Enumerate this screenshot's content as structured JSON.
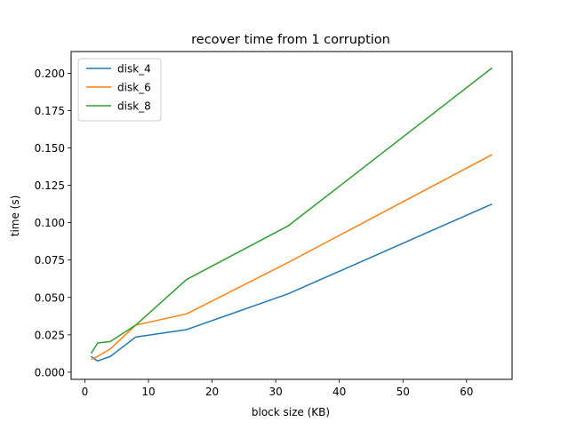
{
  "chart_data": {
    "type": "line",
    "title": "recover time from 1 corruption",
    "xlabel": "block size (KB)",
    "ylabel": "time (s)",
    "xlim": [
      -2.15,
      67.15
    ],
    "ylim": [
      -0.0048,
      0.2145
    ],
    "xticks": [
      0,
      10,
      20,
      30,
      40,
      50,
      60
    ],
    "xtick_labels": [
      "0",
      "10",
      "20",
      "30",
      "40",
      "50",
      "60"
    ],
    "yticks": [
      0.0,
      0.025,
      0.05,
      0.075,
      0.1,
      0.125,
      0.15,
      0.175,
      0.2
    ],
    "ytick_labels": [
      "0.000",
      "0.025",
      "0.050",
      "0.075",
      "0.100",
      "0.125",
      "0.150",
      "0.175",
      "0.200"
    ],
    "grid": false,
    "legend_position": "upper-left",
    "series": [
      {
        "name": "disk_4",
        "color": "#1f77b4",
        "x": [
          1,
          2,
          4,
          8,
          16,
          32,
          64
        ],
        "y": [
          0.0105,
          0.0075,
          0.0105,
          0.0235,
          0.0285,
          0.0525,
          0.1125
        ]
      },
      {
        "name": "disk_6",
        "color": "#ff7f0e",
        "x": [
          1,
          2,
          4,
          8,
          16,
          32,
          64
        ],
        "y": [
          0.0085,
          0.0105,
          0.0155,
          0.0315,
          0.039,
          0.0735,
          0.1455
        ]
      },
      {
        "name": "disk_8",
        "color": "#2ca02c",
        "x": [
          1,
          2,
          4,
          8,
          16,
          32,
          64
        ],
        "y": [
          0.0125,
          0.0195,
          0.0205,
          0.0315,
          0.062,
          0.098,
          0.2035
        ]
      }
    ]
  }
}
